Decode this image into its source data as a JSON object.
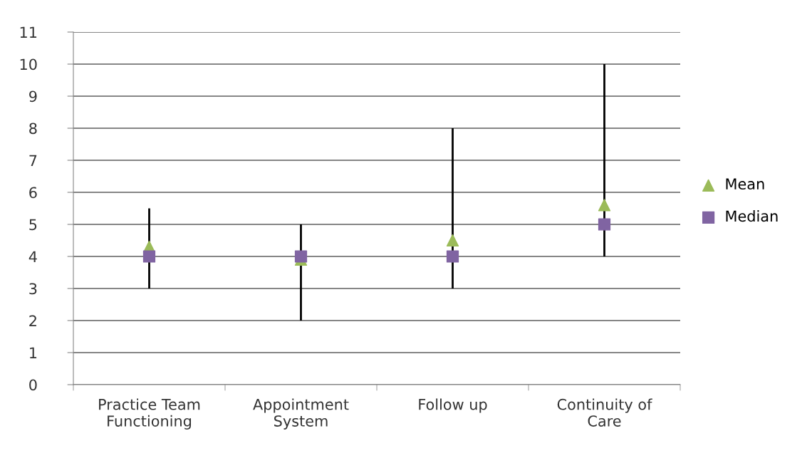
{
  "chart_data": {
    "type": "scatter",
    "categories": [
      "Practice Team\nFunctioning",
      "Appointment\nSystem",
      "Follow up",
      "Continuity of\nCare"
    ],
    "series": [
      {
        "name": "Mean",
        "color": "#9bbb59",
        "marker": "triangle",
        "values": [
          4.3,
          3.9,
          4.5,
          5.6
        ]
      },
      {
        "name": "Median",
        "color": "#8064a2",
        "marker": "square",
        "values": [
          4,
          4,
          4,
          5
        ],
        "errors": [
          [
            3,
            5.5
          ],
          [
            2,
            5
          ],
          [
            3,
            8
          ],
          [
            4,
            10
          ]
        ]
      }
    ],
    "ylim": [
      0,
      11
    ],
    "yticks": [
      0,
      1,
      2,
      3,
      4,
      5,
      6,
      7,
      8,
      9,
      10,
      11
    ],
    "grid": "y",
    "legend": "right"
  }
}
